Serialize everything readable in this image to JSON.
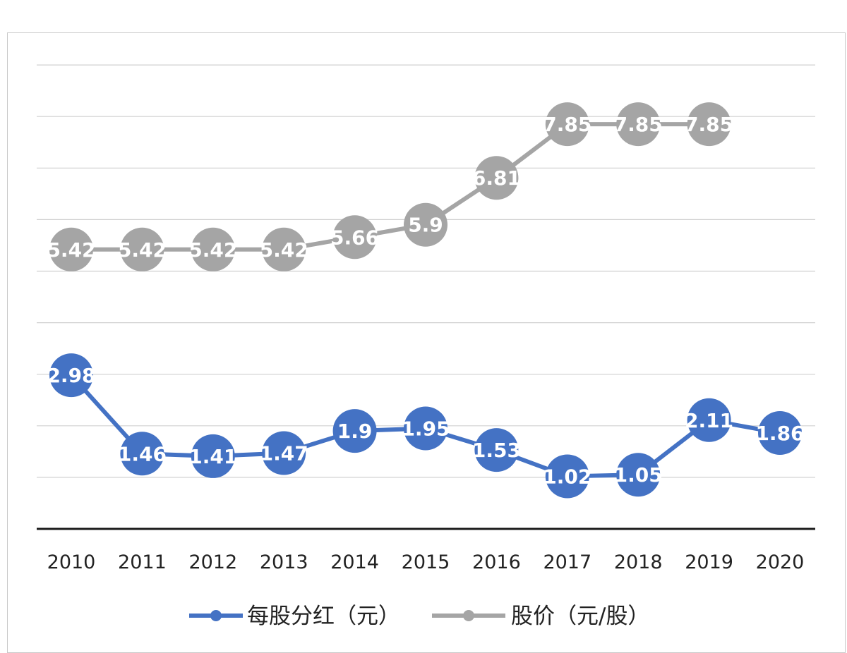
{
  "chart_data": {
    "type": "line",
    "categories": [
      "2010",
      "2011",
      "2012",
      "2013",
      "2014",
      "2015",
      "2016",
      "2017",
      "2018",
      "2019",
      "2020"
    ],
    "series": [
      {
        "name": "每股分红（元）",
        "color": "#4472c4",
        "values": [
          2.98,
          1.46,
          1.41,
          1.47,
          1.9,
          1.95,
          1.53,
          1.02,
          1.05,
          2.11,
          1.86
        ],
        "labels": [
          "2.98",
          "1.46",
          "1.41",
          "1.47",
          "1.9",
          "1.95",
          "1.53",
          "1.02",
          "1.05",
          "2.11",
          "1.86"
        ]
      },
      {
        "name": "股价（元/股）",
        "color": "#a5a5a5",
        "values": [
          5.42,
          5.42,
          5.42,
          5.42,
          5.66,
          5.9,
          6.81,
          7.85,
          7.85,
          7.85,
          null
        ],
        "labels": [
          "5.42",
          "5.42",
          "5.42",
          "5.42",
          "5.66",
          "5.9",
          "6.81",
          "7.85",
          "7.85",
          "7.85",
          ""
        ]
      }
    ],
    "legend_position": "bottom",
    "grid": true
  }
}
